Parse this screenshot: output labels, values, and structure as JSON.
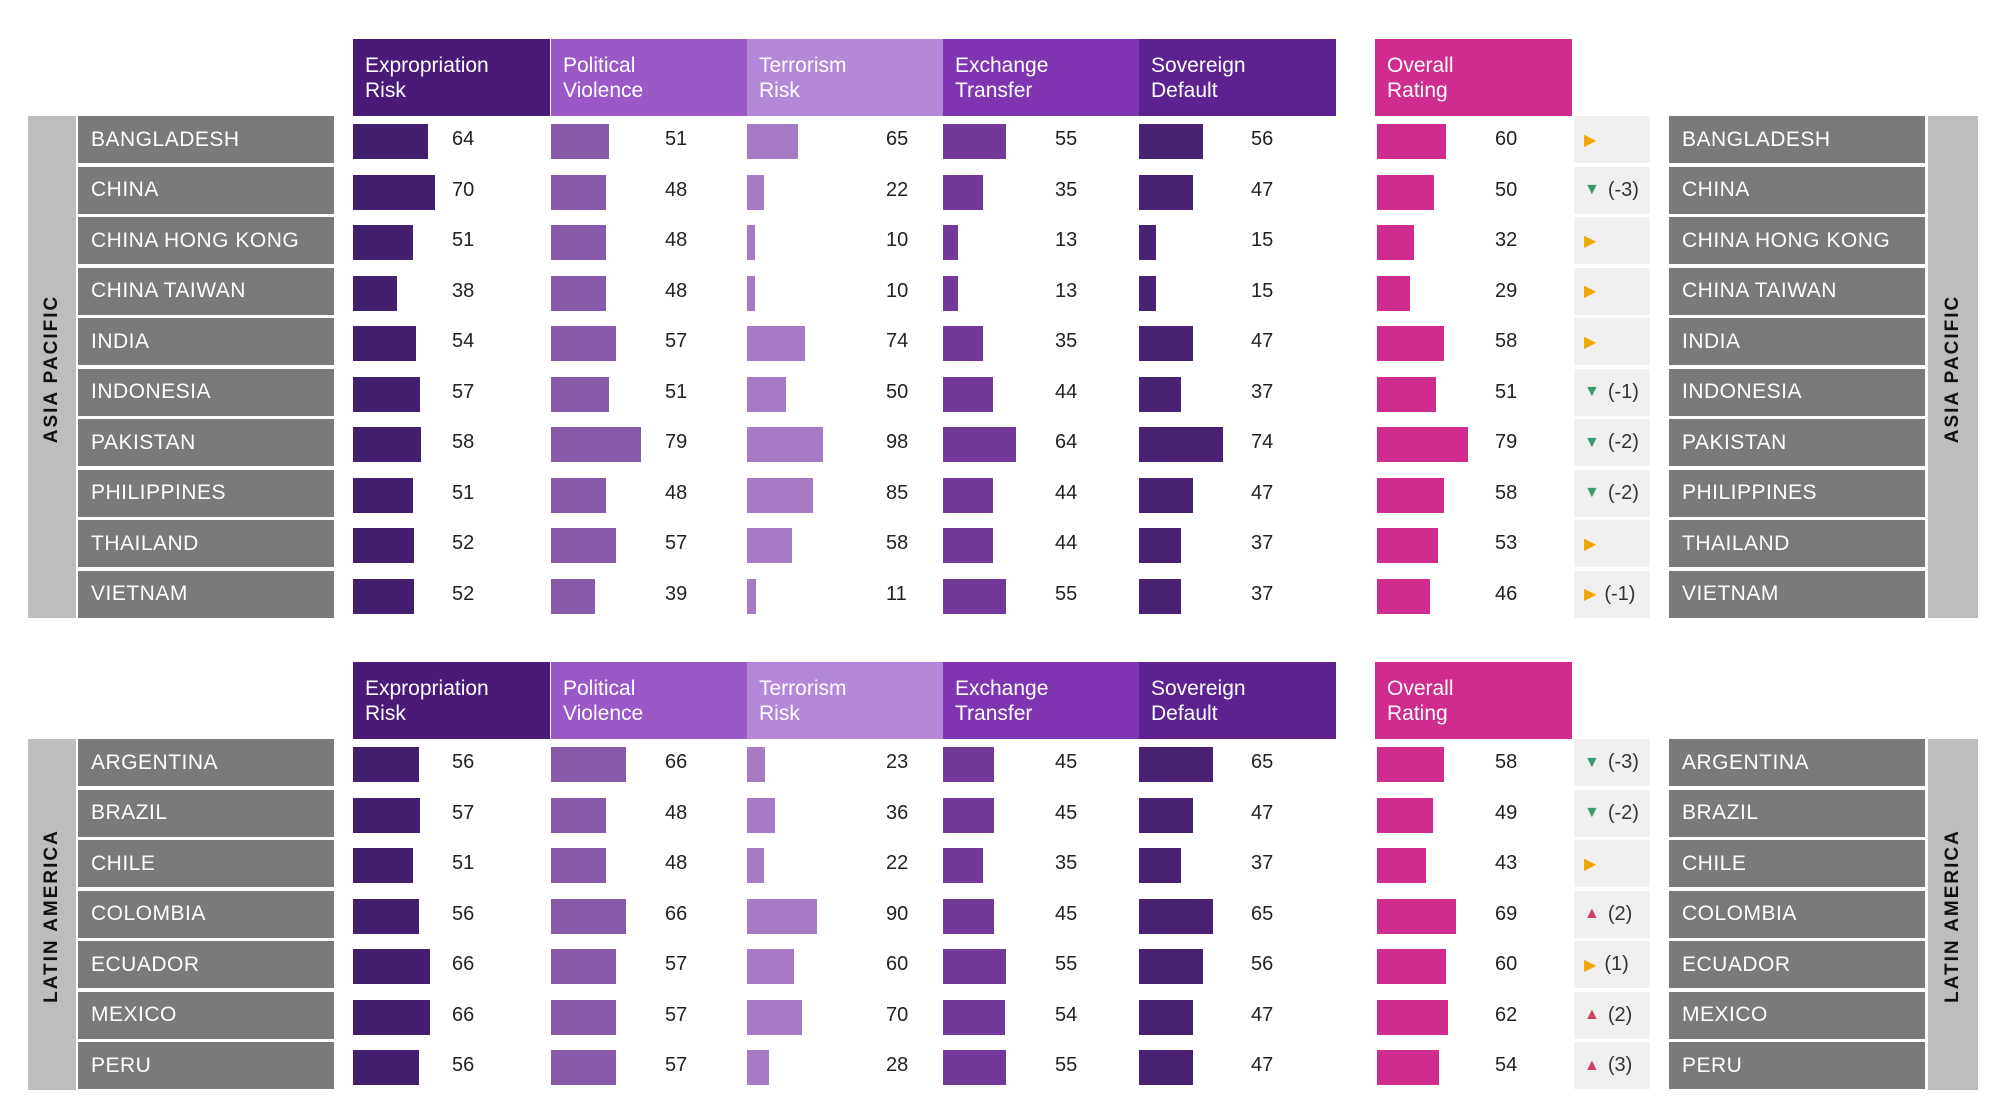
{
  "headers": [
    {
      "line1": "Expropriation",
      "line2": "Risk",
      "color": "#4b1a78"
    },
    {
      "line1": "Political",
      "line2": "Violence",
      "color": "#9b59c7"
    },
    {
      "line1": "Terrorism",
      "line2": "Risk",
      "color": "#b487d9"
    },
    {
      "line1": "Exchange",
      "line2": "Transfer",
      "color": "#7f35b2"
    },
    {
      "line1": "Sovereign",
      "line2": "Default",
      "color": "#5e2290"
    },
    {
      "line1": "Overall",
      "line2": "Rating",
      "color": "#d02b8f"
    }
  ],
  "colors": {
    "bars": [
      "#43206e",
      "#8a5aaa",
      "#a67bc4",
      "#74389a",
      "#4a2273",
      "#d02b8f"
    ],
    "region_bar": "#bdbdbd",
    "country_bg": "#7a7a7a",
    "change_bg": "#f0f0f0",
    "down": "#3a9a6e",
    "side": "#f0a800",
    "up": "#d04060"
  },
  "chart_data": {
    "type": "table",
    "metrics": [
      "Expropriation Risk",
      "Political Violence",
      "Terrorism Risk",
      "Exchange Transfer",
      "Sovereign Default",
      "Overall Rating"
    ],
    "scale_max": 100,
    "regions": [
      {
        "name": "ASIA PACIFIC",
        "rows": [
          {
            "country": "BANGLADESH",
            "values": [
              64,
              51,
              65,
              55,
              56,
              60
            ],
            "trend": "side",
            "change": ""
          },
          {
            "country": "CHINA",
            "values": [
              70,
              48,
              22,
              35,
              47,
              50
            ],
            "trend": "down",
            "change": "(-3)"
          },
          {
            "country": "CHINA HONG KONG",
            "values": [
              51,
              48,
              10,
              13,
              15,
              32
            ],
            "trend": "side",
            "change": ""
          },
          {
            "country": "CHINA TAIWAN",
            "values": [
              38,
              48,
              10,
              13,
              15,
              29
            ],
            "trend": "side",
            "change": ""
          },
          {
            "country": "INDIA",
            "values": [
              54,
              57,
              74,
              35,
              47,
              58
            ],
            "trend": "side",
            "change": ""
          },
          {
            "country": "INDONESIA",
            "values": [
              57,
              51,
              50,
              44,
              37,
              51
            ],
            "trend": "down",
            "change": "(-1)"
          },
          {
            "country": "PAKISTAN",
            "values": [
              58,
              79,
              98,
              64,
              74,
              79
            ],
            "trend": "down",
            "change": "(-2)"
          },
          {
            "country": "PHILIPPINES",
            "values": [
              51,
              48,
              85,
              44,
              47,
              58
            ],
            "trend": "down",
            "change": "(-2)"
          },
          {
            "country": "THAILAND",
            "values": [
              52,
              57,
              58,
              44,
              37,
              53
            ],
            "trend": "side",
            "change": ""
          },
          {
            "country": "VIETNAM",
            "values": [
              52,
              39,
              11,
              55,
              37,
              46
            ],
            "trend": "side",
            "change": "(-1)"
          }
        ]
      },
      {
        "name": "LATIN AMERICA",
        "rows": [
          {
            "country": "ARGENTINA",
            "values": [
              56,
              66,
              23,
              45,
              65,
              58
            ],
            "trend": "down",
            "change": "(-3)"
          },
          {
            "country": "BRAZIL",
            "values": [
              57,
              48,
              36,
              45,
              47,
              49
            ],
            "trend": "down",
            "change": "(-2)"
          },
          {
            "country": "CHILE",
            "values": [
              51,
              48,
              22,
              35,
              37,
              43
            ],
            "trend": "side",
            "change": ""
          },
          {
            "country": "COLOMBIA",
            "values": [
              56,
              66,
              90,
              45,
              65,
              69
            ],
            "trend": "up",
            "change": "(2)"
          },
          {
            "country": "ECUADOR",
            "values": [
              66,
              57,
              60,
              55,
              56,
              60
            ],
            "trend": "side",
            "change": "(1)"
          },
          {
            "country": "MEXICO",
            "values": [
              66,
              57,
              70,
              54,
              47,
              62
            ],
            "trend": "up",
            "change": "(2)"
          },
          {
            "country": "PERU",
            "values": [
              56,
              57,
              28,
              55,
              47,
              54
            ],
            "trend": "up",
            "change": "(3)"
          }
        ]
      }
    ]
  }
}
